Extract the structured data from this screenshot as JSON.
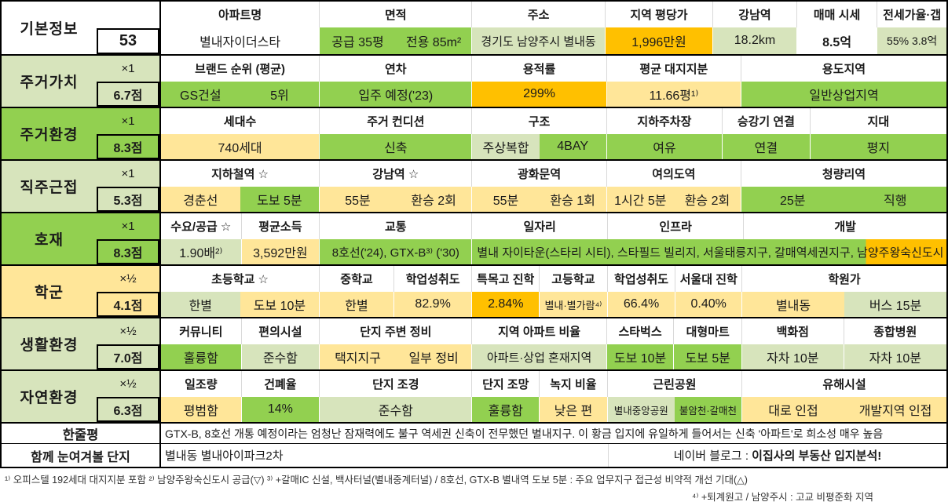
{
  "palette": {
    "g": "#92d050",
    "lg": "#d7e4bc",
    "y": "#ffe699",
    "o": "#ffc000",
    "w": "#ffffff"
  },
  "basic": {
    "label": "기본정보",
    "score": "53",
    "columns": [
      {
        "id": "apartment-name",
        "header": "아파트명",
        "cells": [
          {
            "t": "별내자이더스타",
            "bg": "w"
          }
        ]
      },
      {
        "id": "area",
        "header": "면적",
        "cells": [
          {
            "t": "공급 35평",
            "bg": "g"
          },
          {
            "t": "전용 85m²",
            "bg": "g"
          }
        ]
      },
      {
        "id": "address",
        "header": "주소",
        "cells": [
          {
            "t": "경기도 남양주시 별내동",
            "bg": "lg"
          }
        ]
      },
      {
        "id": "price-per-pyeong",
        "header": "지역 평당가",
        "cells": [
          {
            "t": "1,996만원",
            "bg": "o"
          }
        ]
      },
      {
        "id": "gangnam-distance",
        "header": "강남역",
        "cells": [
          {
            "t": "18.2km",
            "bg": "lg"
          }
        ]
      },
      {
        "id": "sale-price",
        "header": "매매 시세",
        "cells": [
          {
            "t": "8.5억",
            "bg": "w",
            "b": true
          }
        ]
      },
      {
        "id": "jeonse-ratio-gap",
        "header": "전세가율·갭",
        "cells": [
          {
            "t": "55% 3.8억",
            "bg": "lg"
          }
        ]
      }
    ]
  },
  "sections": [
    {
      "id": "residential-value",
      "label": "주거가치",
      "mult": "×1",
      "score": "6.7점",
      "bg": "lg",
      "columns": [
        {
          "id": "brand-rank",
          "header": "브랜드 순위 (평균)",
          "cells": [
            {
              "t": "GS건설",
              "bg": "g"
            },
            {
              "t": "5위",
              "bg": "g"
            }
          ]
        },
        {
          "id": "age",
          "header": "연차",
          "cells": [
            {
              "t": "입주 예정('23)",
              "bg": "g"
            }
          ]
        },
        {
          "id": "floor-area-ratio",
          "header": "용적률",
          "cells": [
            {
              "t": "299%",
              "bg": "o"
            }
          ]
        },
        {
          "id": "avg-land-share",
          "header": "평균 대지지분",
          "cells": [
            {
              "t": "11.66평¹⁾",
              "bg": "y"
            }
          ]
        },
        {
          "id": "zoning",
          "header": "용도지역",
          "cells": [
            {
              "t": "일반상업지역",
              "bg": "g"
            }
          ]
        }
      ]
    },
    {
      "id": "residential-environment",
      "label": "주거환경",
      "mult": "×1",
      "score": "8.3점",
      "bg": "g",
      "columns": [
        {
          "id": "households",
          "header": "세대수",
          "cells": [
            {
              "t": "740세대",
              "bg": "y"
            }
          ]
        },
        {
          "id": "condition",
          "header": "주거 컨디션",
          "cells": [
            {
              "t": "신축",
              "bg": "g"
            }
          ]
        },
        {
          "id": "structure",
          "header": "구조",
          "cells": [
            {
              "t": "주상복합",
              "bg": "lg"
            },
            {
              "t": "4BAY",
              "bg": "g"
            }
          ]
        },
        {
          "id": "parking",
          "header": "지하주차장",
          "cells": [
            {
              "t": "여유",
              "bg": "g"
            }
          ]
        },
        {
          "id": "elevator",
          "header": "승강기 연결",
          "cells": [
            {
              "t": "연결",
              "bg": "g"
            }
          ]
        },
        {
          "id": "terrain",
          "header": "지대",
          "cells": [
            {
              "t": "평지",
              "bg": "g"
            }
          ]
        }
      ]
    },
    {
      "id": "job-proximity",
      "label": "직주근접",
      "mult": "×1",
      "score": "5.3점",
      "bg": "lg",
      "columns": [
        {
          "id": "subway",
          "header": "지하철역 ☆",
          "cells": [
            {
              "t": "경춘선",
              "bg": "y"
            },
            {
              "t": "도보 5분",
              "bg": "g"
            }
          ]
        },
        {
          "id": "gangnam",
          "header": "강남역 ☆",
          "cells": [
            {
              "t": "55분",
              "bg": "y"
            },
            {
              "t": "환승 2회",
              "bg": "y"
            }
          ]
        },
        {
          "id": "gwanghwamun",
          "header": "광화문역",
          "cells": [
            {
              "t": "55분",
              "bg": "y"
            },
            {
              "t": "환승 1회",
              "bg": "y"
            }
          ]
        },
        {
          "id": "yeouido",
          "header": "여의도역",
          "cells": [
            {
              "t": "1시간 5분",
              "bg": "y"
            },
            {
              "t": "환승 2회",
              "bg": "y"
            }
          ]
        },
        {
          "id": "cheongnyangni",
          "header": "청량리역",
          "cells": [
            {
              "t": "25분",
              "bg": "g"
            },
            {
              "t": "직행",
              "bg": "g"
            }
          ]
        }
      ]
    },
    {
      "id": "momentum",
      "label": "호재",
      "mult": "×1",
      "score": "8.3점",
      "bg": "g",
      "columns": [
        {
          "id": "demand-supply",
          "header": "수요/공급 ☆",
          "cells": [
            {
              "t": "1.90배²⁾",
              "bg": "lg"
            }
          ]
        },
        {
          "id": "avg-income",
          "header": "평균소득",
          "cells": [
            {
              "t": "3,592만원",
              "bg": "y"
            }
          ]
        },
        {
          "id": "transport",
          "header": "교통",
          "cells": [
            {
              "t": "8호선('24), GTX-B³⁾ ('30)",
              "bg": "g"
            }
          ]
        },
        {
          "id": "jobs-infra-dev",
          "headers": [
            "일자리",
            "인프라",
            "개발"
          ],
          "cells": [
            {
              "t": "별내 자이타운(스타리 시티), 스타필드 빌리지, 서울태릉지구, 갈매역세권지구, 남양주왕숙신도시",
              "bg": "go"
            }
          ]
        }
      ]
    },
    {
      "id": "school-district",
      "label": "학군",
      "mult": "×½",
      "score": "4.1점",
      "bg": "y",
      "columns": [
        {
          "id": "elementary",
          "header": "초등학교 ☆",
          "cells": [
            {
              "t": "한별",
              "bg": "lg"
            },
            {
              "t": "도보 10분",
              "bg": "y"
            }
          ]
        },
        {
          "id": "middle-school",
          "header": "중학교",
          "cells": [
            {
              "t": "한별",
              "bg": "y"
            }
          ]
        },
        {
          "id": "middle-achievement",
          "header": "학업성취도",
          "cells": [
            {
              "t": "82.9%",
              "bg": "y"
            }
          ]
        },
        {
          "id": "special-hs-rate",
          "header": "특목고 진학",
          "cells": [
            {
              "t": "2.84%",
              "bg": "o"
            }
          ]
        },
        {
          "id": "high-school",
          "header": "고등학교",
          "cells": [
            {
              "t": "별내·별가람⁴⁾",
              "bg": "y"
            }
          ]
        },
        {
          "id": "high-achievement",
          "header": "학업성취도",
          "cells": [
            {
              "t": "66.4%",
              "bg": "y"
            }
          ]
        },
        {
          "id": "snu-rate",
          "header": "서울대 진학",
          "cells": [
            {
              "t": "0.40%",
              "bg": "y"
            }
          ]
        },
        {
          "id": "hagwon",
          "header": "학원가",
          "cells": [
            {
              "t": "별내동",
              "bg": "y"
            },
            {
              "t": "버스 15분",
              "bg": "lg"
            }
          ]
        }
      ]
    },
    {
      "id": "living-environment",
      "label": "생활환경",
      "mult": "×½",
      "score": "7.0점",
      "bg": "lg",
      "columns": [
        {
          "id": "community",
          "header": "커뮤니티",
          "cells": [
            {
              "t": "훌륭함",
              "bg": "g"
            }
          ]
        },
        {
          "id": "amenities",
          "header": "편의시설",
          "cells": [
            {
              "t": "준수함",
              "bg": "lg"
            }
          ]
        },
        {
          "id": "surroundings",
          "header": "단지 주변 정비",
          "cells": [
            {
              "t": "택지지구",
              "bg": "y"
            },
            {
              "t": "일부 정비",
              "bg": "y"
            }
          ]
        },
        {
          "id": "apt-ratio",
          "header": "지역 아파트 비율",
          "cells": [
            {
              "t": "아파트·상업 혼재지역",
              "bg": "lg"
            }
          ]
        },
        {
          "id": "starbucks",
          "header": "스타벅스",
          "cells": [
            {
              "t": "도보 10분",
              "bg": "g"
            }
          ]
        },
        {
          "id": "mart",
          "header": "대형마트",
          "cells": [
            {
              "t": "도보 5분",
              "bg": "g"
            }
          ]
        },
        {
          "id": "department-store",
          "header": "백화점",
          "cells": [
            {
              "t": "자차 10분",
              "bg": "lg"
            }
          ]
        },
        {
          "id": "hospital",
          "header": "종합병원",
          "cells": [
            {
              "t": "자차 10분",
              "bg": "lg"
            }
          ]
        }
      ]
    },
    {
      "id": "natural-environment",
      "label": "자연환경",
      "mult": "×½",
      "score": "6.3점",
      "bg": "lg",
      "columns": [
        {
          "id": "sunlight",
          "header": "일조량",
          "cells": [
            {
              "t": "평범함",
              "bg": "y"
            }
          ]
        },
        {
          "id": "building-coverage",
          "header": "건폐율",
          "cells": [
            {
              "t": "14%",
              "bg": "g"
            }
          ]
        },
        {
          "id": "landscaping",
          "header": "단지 조경",
          "cells": [
            {
              "t": "준수함",
              "bg": "lg"
            }
          ]
        },
        {
          "id": "view",
          "header": "단지 조망",
          "cells": [
            {
              "t": "훌륭함",
              "bg": "g"
            }
          ]
        },
        {
          "id": "green-ratio",
          "header": "녹지 비율",
          "cells": [
            {
              "t": "낮은 편",
              "bg": "y"
            }
          ]
        },
        {
          "id": "park",
          "header": "근린공원",
          "cells": [
            {
              "t": "별내중앙공원",
              "bg": "lg"
            },
            {
              "t": "불암천·갈매천",
              "bg": "g"
            }
          ]
        },
        {
          "id": "hazards",
          "header": "유해시설",
          "cells": [
            {
              "t": "대로 인접",
              "bg": "y"
            },
            {
              "t": "개발지역 인접",
              "bg": "y"
            }
          ]
        }
      ]
    }
  ],
  "review": {
    "label": "한줄평",
    "text": "GTX-B, 8호선 개통 예정이라는 엄청난 잠재력에도 불구 역세권 신축이 전무했던 별내지구. 이 황금 입지에 유일하게 들어서는 신축 '아파트'로 희소성 매우 높음"
  },
  "related": {
    "label": "함께 눈여겨볼 단지",
    "name": "별내동 별내아이파크2차",
    "blog_prefix": "네이버 블로그 : ",
    "blog_name": "이집사의 부동산 입지분석!"
  },
  "footnotes": {
    "line1": "¹⁾ 오피스텔 192세대 대지지분 포함 ²⁾ 남양주왕숙신도시 공급(▽) ³⁾ +갈매IC 신설, 백사터널(별내중계터널) / 8호선, GTX-B 별내역 도보 5분 : 주요 업무지구 접근성 비약적 개선 기대(△)",
    "line2": "⁴⁾ +퇴계원고 / 남양주시 : 고교 비평준화 지역"
  }
}
